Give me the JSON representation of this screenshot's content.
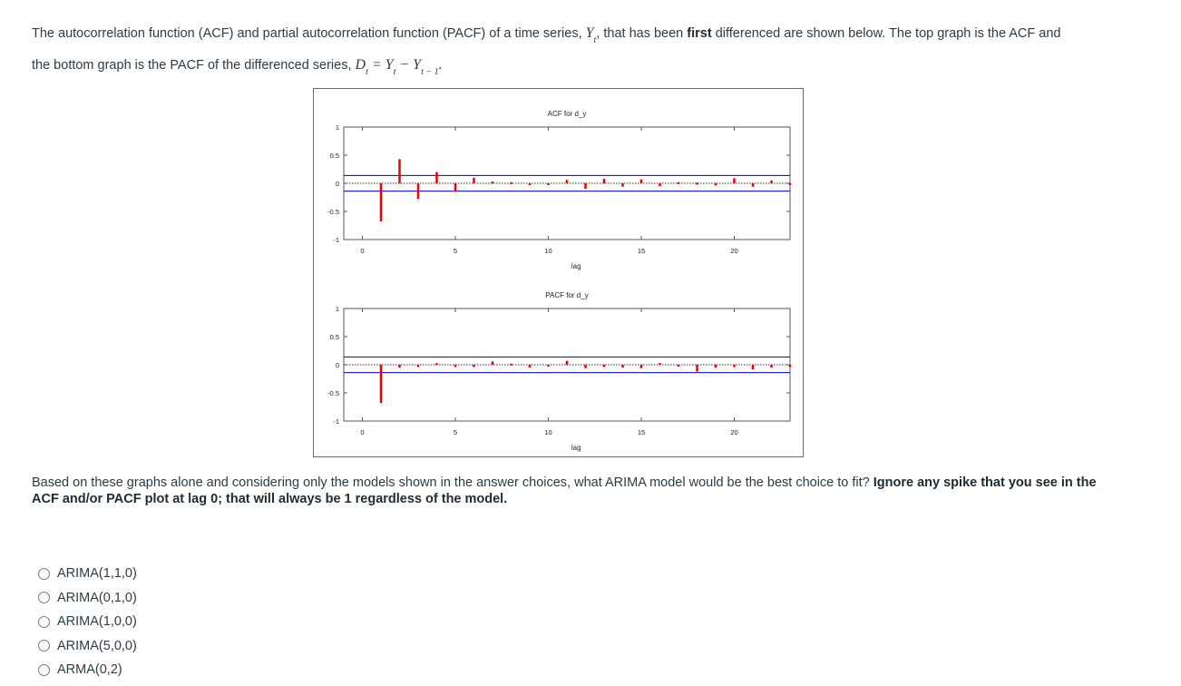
{
  "question": {
    "intro_part1": "The autocorrelation function (ACF) and partial autocorrelation function (PACF) of a time series,",
    "series_symbol": "Y",
    "series_sub": "t",
    "intro_part2": ", that has been",
    "bold_word": "first",
    "intro_part3": "differenced are shown below. The top graph is the ACF and",
    "line2_part1": "the bottom graph is the PACF of the differenced series,",
    "formula": {
      "lhs": "D",
      "lhs_sub": "t",
      "eq": " = ",
      "y1": "Y",
      "y1_sub": "t",
      "minus": " − ",
      "y2": "Y",
      "y2_sub": "t − 1",
      "end": "."
    },
    "followup": "Based on these graphs alone and considering only the models shown in the answer choices, what ARIMA model would be the best choice to fit?",
    "followup_bold": "Ignore any spike that you see in the ACF and/or PACF plot at lag 0; that will always be 1 regardless of the model."
  },
  "choices": [
    "ARIMA(1,1,0)",
    "ARIMA(0,1,0)",
    "ARIMA(1,0,0)",
    "ARIMA(5,0,0)",
    "ARMA(0,2)"
  ],
  "colors": {
    "spike": "#ee0000",
    "band": "#0000cc",
    "axis": "#555555",
    "zero_line": "#333333"
  },
  "chart_data": [
    {
      "type": "bar",
      "title": "ACF for d_y",
      "xlabel": "lag",
      "ylabel": "",
      "xlim": [
        0,
        23
      ],
      "ylim": [
        -1,
        1
      ],
      "xticks": [
        0,
        5,
        10,
        15,
        20
      ],
      "yticks": [
        1,
        0.5,
        0,
        -0.5,
        -1
      ],
      "ytick_labels": [
        "1",
        "0.5",
        "0",
        "-0.5",
        "-1"
      ],
      "confidence_band": [
        0.14,
        -0.14
      ],
      "x": [
        1,
        2,
        3,
        4,
        5,
        6,
        7,
        8,
        9,
        10,
        11,
        12,
        13,
        14,
        15,
        16,
        17,
        18,
        19,
        20,
        21,
        22,
        23
      ],
      "values": [
        -0.68,
        0.43,
        -0.28,
        0.2,
        -0.15,
        0.1,
        0.03,
        0.02,
        -0.02,
        0.0,
        0.06,
        -0.1,
        0.08,
        -0.06,
        0.07,
        -0.05,
        0.02,
        0.01,
        -0.04,
        0.09,
        -0.06,
        0.05,
        -0.03
      ]
    },
    {
      "type": "bar",
      "title": "PACF for d_y",
      "xlabel": "lag",
      "ylabel": "",
      "xlim": [
        0,
        23
      ],
      "ylim": [
        -1,
        1
      ],
      "xticks": [
        0,
        5,
        10,
        15,
        20
      ],
      "yticks": [
        1,
        0.5,
        0,
        -0.5,
        -1
      ],
      "ytick_labels": [
        "1",
        "0.5",
        "0",
        "-0.5",
        "-1"
      ],
      "confidence_band": [
        0.14,
        -0.14
      ],
      "x": [
        1,
        2,
        3,
        4,
        5,
        6,
        7,
        8,
        9,
        10,
        11,
        12,
        13,
        14,
        15,
        16,
        17,
        18,
        19,
        20,
        21,
        22,
        23
      ],
      "values": [
        -0.68,
        -0.05,
        -0.04,
        0.03,
        -0.04,
        -0.04,
        0.06,
        0.02,
        -0.05,
        -0.03,
        0.07,
        -0.06,
        -0.04,
        -0.05,
        -0.06,
        0.03,
        -0.02,
        -0.12,
        -0.05,
        -0.04,
        -0.08,
        -0.05,
        -0.04
      ]
    }
  ]
}
